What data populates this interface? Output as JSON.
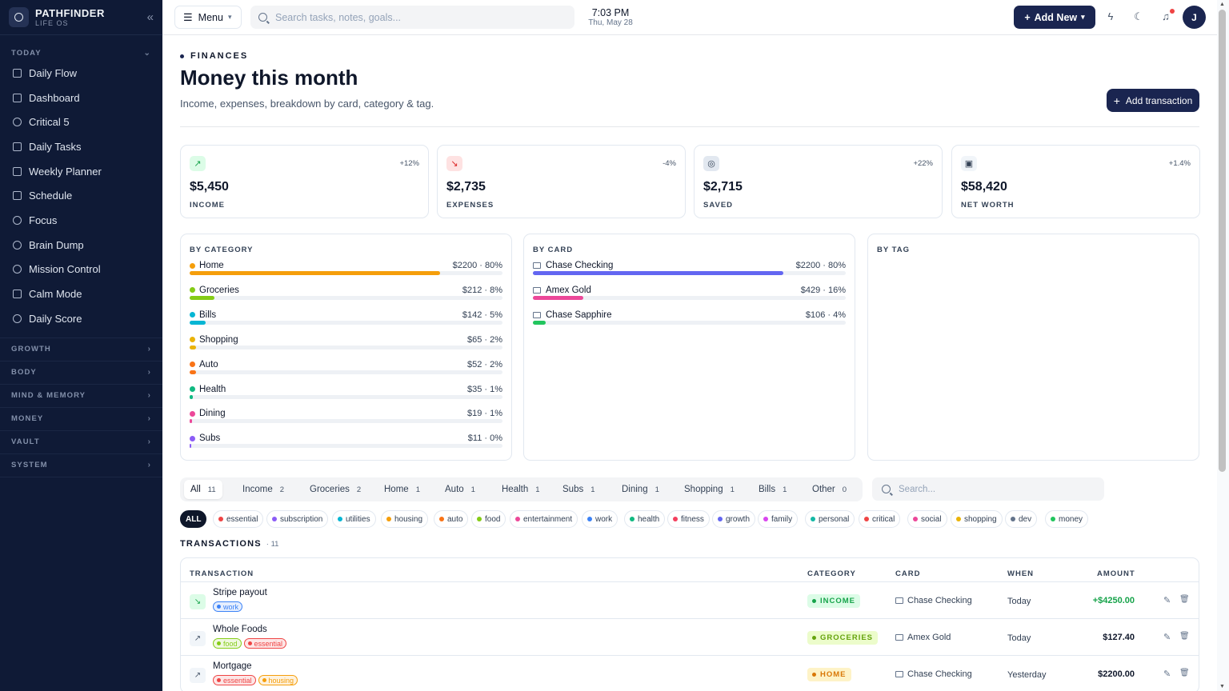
{
  "brand": {
    "name": "PATHFINDER",
    "sub": "LIFE OS"
  },
  "sidebar": {
    "today_label": "TODAY",
    "items": [
      {
        "label": "Daily Flow",
        "icon": "sunrise-icon"
      },
      {
        "label": "Dashboard",
        "icon": "grid-icon"
      },
      {
        "label": "Critical 5",
        "icon": "target-icon"
      },
      {
        "label": "Daily Tasks",
        "icon": "list-icon"
      },
      {
        "label": "Weekly Planner",
        "icon": "calendar-icon"
      },
      {
        "label": "Schedule",
        "icon": "calendar-icon"
      },
      {
        "label": "Focus",
        "icon": "timer-icon"
      },
      {
        "label": "Brain Dump",
        "icon": "brain-icon"
      },
      {
        "label": "Mission Control",
        "icon": "radar-icon"
      },
      {
        "label": "Calm Mode",
        "icon": "wind-icon"
      },
      {
        "label": "Daily Score",
        "icon": "gauge-icon"
      }
    ],
    "sections": [
      "GROWTH",
      "BODY",
      "MIND & MEMORY",
      "MONEY",
      "VAULT",
      "SYSTEM"
    ]
  },
  "topbar": {
    "menu_label": "Menu",
    "search_placeholder": "Search tasks, notes, goals...",
    "time": "7:03 PM",
    "date": "Thu, May 28",
    "add_new_label": "Add New",
    "avatar_initial": "J"
  },
  "page": {
    "eyebrow": "FINANCES",
    "title": "Money this month",
    "subtitle": "Income, expenses, breakdown by card, category & tag.",
    "add_transaction_label": "Add transaction"
  },
  "stats": [
    {
      "value": "$5,450",
      "label": "INCOME",
      "change": "+12%",
      "icon": "trending-up-icon",
      "color": "#16a34a",
      "bg": "#dcfce7"
    },
    {
      "value": "$2,735",
      "label": "EXPENSES",
      "change": "-4%",
      "icon": "trending-down-icon",
      "color": "#dc2626",
      "bg": "#fee2e2"
    },
    {
      "value": "$2,715",
      "label": "SAVED",
      "change": "+22%",
      "icon": "piggy-bank-icon",
      "color": "#334155",
      "bg": "#e2e8f0"
    },
    {
      "value": "$58,420",
      "label": "NET WORTH",
      "change": "+1.4%",
      "icon": "wallet-icon",
      "color": "#334155",
      "bg": "#f1f5f9"
    }
  ],
  "by_category": {
    "title": "BY CATEGORY",
    "rows": [
      {
        "name": "Home",
        "amount": "$2200 · 80%",
        "fraction": 0.8,
        "color": "#f59e0b"
      },
      {
        "name": "Groceries",
        "amount": "$212 · 8%",
        "fraction": 0.08,
        "color": "#84cc16"
      },
      {
        "name": "Bills",
        "amount": "$142 · 5%",
        "fraction": 0.05,
        "color": "#06b6d4"
      },
      {
        "name": "Shopping",
        "amount": "$65 · 2%",
        "fraction": 0.02,
        "color": "#eab308"
      },
      {
        "name": "Auto",
        "amount": "$52 · 2%",
        "fraction": 0.02,
        "color": "#f97316"
      },
      {
        "name": "Health",
        "amount": "$35 · 1%",
        "fraction": 0.01,
        "color": "#10b981"
      },
      {
        "name": "Dining",
        "amount": "$19 · 1%",
        "fraction": 0.007,
        "color": "#ec4899"
      },
      {
        "name": "Subs",
        "amount": "$11 · 0%",
        "fraction": 0.004,
        "color": "#8b5cf6"
      }
    ]
  },
  "by_card": {
    "title": "BY CARD",
    "rows": [
      {
        "name": "Chase Checking",
        "amount": "$2200 · 80%",
        "fraction": 0.8,
        "color": "#6366f1"
      },
      {
        "name": "Amex Gold",
        "amount": "$429 · 16%",
        "fraction": 0.16,
        "color": "#ec4899"
      },
      {
        "name": "Chase Sapphire",
        "amount": "$106 · 4%",
        "fraction": 0.04,
        "color": "#22c55e"
      }
    ]
  },
  "by_tag": {
    "title": "BY TAG"
  },
  "filters": [
    {
      "label": "All",
      "count": "11",
      "active": true
    },
    {
      "label": "Income",
      "count": "2"
    },
    {
      "label": "Groceries",
      "count": "2"
    },
    {
      "label": "Home",
      "count": "1"
    },
    {
      "label": "Auto",
      "count": "1"
    },
    {
      "label": "Health",
      "count": "1"
    },
    {
      "label": "Subs",
      "count": "1"
    },
    {
      "label": "Dining",
      "count": "1"
    },
    {
      "label": "Shopping",
      "count": "1"
    },
    {
      "label": "Bills",
      "count": "1"
    },
    {
      "label": "Other",
      "count": "0"
    }
  ],
  "tx_search_placeholder": "Search...",
  "tags": [
    {
      "label": "ALL",
      "active": true
    },
    {
      "label": "essential",
      "color": "#ef4444"
    },
    {
      "label": "subscription",
      "color": "#8b5cf6"
    },
    {
      "label": "utilities",
      "color": "#06b6d4"
    },
    {
      "label": "housing",
      "color": "#f59e0b"
    },
    {
      "label": "auto",
      "color": "#f97316"
    },
    {
      "label": "food",
      "color": "#84cc16"
    },
    {
      "label": "entertainment",
      "color": "#ec4899"
    },
    {
      "label": "work",
      "color": "#3b82f6"
    },
    {
      "label": "health",
      "color": "#10b981"
    },
    {
      "label": "fitness",
      "color": "#f43f5e"
    },
    {
      "label": "growth",
      "color": "#6366f1"
    },
    {
      "label": "family",
      "color": "#d946ef"
    },
    {
      "label": "personal",
      "color": "#14b8a6"
    },
    {
      "label": "critical",
      "color": "#ef4444"
    },
    {
      "label": "social",
      "color": "#ec4899"
    },
    {
      "label": "shopping",
      "color": "#eab308"
    },
    {
      "label": "dev",
      "color": "#64748b"
    },
    {
      "label": "money",
      "color": "#22c55e"
    }
  ],
  "transactions": {
    "title": "TRANSACTIONS",
    "count": "· 11",
    "headers": {
      "transaction": "TRANSACTION",
      "category": "CATEGORY",
      "card": "CARD",
      "when": "WHEN",
      "amount": "AMOUNT"
    },
    "rows": [
      {
        "name": "Stripe payout",
        "tags": [
          {
            "label": "work",
            "color": "#3b82f6"
          }
        ],
        "category": "INCOME",
        "cat_color": "#16a34a",
        "cat_bg": "#dcfce7",
        "card": "Chase Checking",
        "when": "Today",
        "amount": "+$4250.00",
        "amount_color": "#16a34a",
        "direction": "in"
      },
      {
        "name": "Whole Foods",
        "tags": [
          {
            "label": "food",
            "color": "#84cc16"
          },
          {
            "label": "essential",
            "color": "#ef4444"
          }
        ],
        "category": "GROCERIES",
        "cat_color": "#65a30d",
        "cat_bg": "#ecfccb",
        "card": "Amex Gold",
        "when": "Today",
        "amount": "$127.40",
        "amount_color": "#0f172a",
        "direction": "out"
      },
      {
        "name": "Mortgage",
        "tags": [
          {
            "label": "essential",
            "color": "#ef4444"
          },
          {
            "label": "housing",
            "color": "#f59e0b"
          }
        ],
        "category": "HOME",
        "cat_color": "#d97706",
        "cat_bg": "#fef3c7",
        "card": "Chase Checking",
        "when": "Yesterday",
        "amount": "$2200.00",
        "amount_color": "#0f172a",
        "direction": "out"
      }
    ]
  }
}
